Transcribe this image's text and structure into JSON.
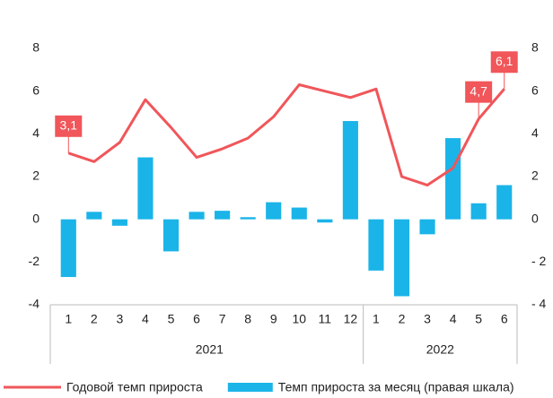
{
  "chart_data": {
    "type": "bar_line",
    "categories": [
      "1",
      "2",
      "3",
      "4",
      "5",
      "6",
      "7",
      "8",
      "9",
      "10",
      "11",
      "12",
      "1",
      "2",
      "3",
      "4",
      "5",
      "6"
    ],
    "groups": [
      {
        "name": "2021",
        "size": 12
      },
      {
        "name": "2022",
        "size": 6
      }
    ],
    "series": [
      {
        "name": "Годовой темп прироста",
        "type": "line",
        "color": "#f0565a",
        "axis": "y",
        "values": [
          3.1,
          2.7,
          3.6,
          5.6,
          4.3,
          2.9,
          3.3,
          3.8,
          4.8,
          6.3,
          6.0,
          5.7,
          6.1,
          2.0,
          1.6,
          2.4,
          4.7,
          6.1
        ],
        "value_labels": [
          "3,1",
          null,
          null,
          null,
          null,
          null,
          null,
          null,
          null,
          null,
          null,
          null,
          null,
          null,
          null,
          null,
          "4,7",
          "6,1"
        ]
      },
      {
        "name": "Темп прироста за месяц (правая шкала)",
        "type": "bar",
        "color": "#1ab4e8",
        "axis": "y2",
        "values": [
          -2.7,
          0.35,
          -0.3,
          2.9,
          -1.5,
          0.35,
          0.4,
          0.1,
          0.8,
          0.55,
          -0.15,
          4.6,
          -2.4,
          -3.6,
          -0.7,
          3.8,
          0.75,
          1.6
        ]
      }
    ],
    "ylim": [
      -4,
      8
    ],
    "yticks": [
      -4,
      -2,
      0,
      2,
      4,
      6,
      8
    ],
    "y2lim": [
      -4,
      8
    ],
    "y2ticks": [
      {
        "value": -4,
        "label": "- 4"
      },
      {
        "value": -2,
        "label": "- 2"
      },
      0,
      2,
      4,
      6,
      8
    ],
    "legend": "bottom"
  }
}
